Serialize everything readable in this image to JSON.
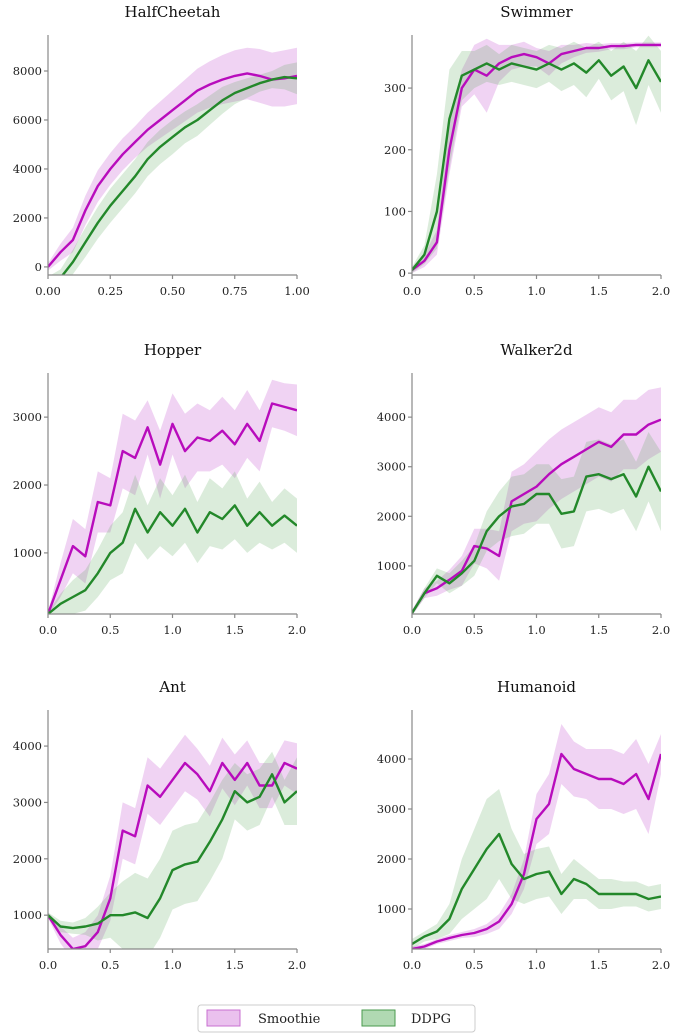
{
  "chart_data": [
    {
      "type": "line",
      "title": "HalfCheetah",
      "xlim": [
        0,
        1
      ],
      "ylim": [
        -330,
        9470
      ],
      "xticks": [
        "0.00",
        "0.25",
        "0.50",
        "0.75",
        "1.00"
      ],
      "yticks": [
        "0",
        "2000",
        "4000",
        "6000",
        "8000"
      ],
      "x": [
        0,
        0.05,
        0.1,
        0.15,
        0.2,
        0.25,
        0.3,
        0.35,
        0.4,
        0.45,
        0.5,
        0.55,
        0.6,
        0.65,
        0.7,
        0.75,
        0.8,
        0.85,
        0.9,
        0.95,
        1.0
      ],
      "series": [
        {
          "name": "Smoothie",
          "mean": [
            0,
            600,
            1100,
            2300,
            3300,
            4000,
            4600,
            5100,
            5600,
            6000,
            6400,
            6800,
            7200,
            7450,
            7650,
            7800,
            7900,
            7800,
            7650,
            7700,
            7800
          ],
          "band": [
            150,
            350,
            500,
            600,
            650,
            650,
            650,
            650,
            700,
            750,
            800,
            850,
            900,
            950,
            1000,
            1050,
            1050,
            1100,
            1100,
            1150,
            1150
          ]
        },
        {
          "name": "DDPG",
          "mean": [
            -600,
            -450,
            200,
            1000,
            1800,
            2500,
            3100,
            3700,
            4400,
            4900,
            5300,
            5700,
            6000,
            6400,
            6800,
            7100,
            7300,
            7500,
            7650,
            7750,
            7700
          ],
          "band": [
            200,
            350,
            500,
            600,
            650,
            700,
            700,
            700,
            700,
            700,
            700,
            650,
            650,
            600,
            550,
            450,
            400,
            350,
            350,
            500,
            650
          ]
        }
      ]
    },
    {
      "type": "line",
      "title": "Swimmer",
      "xlim": [
        0,
        2
      ],
      "ylim": [
        -3,
        386
      ],
      "xticks": [
        "0.0",
        "0.5",
        "1.0",
        "1.5",
        "2.0"
      ],
      "yticks": [
        "0",
        "100",
        "200",
        "300"
      ],
      "x": [
        0,
        0.1,
        0.2,
        0.3,
        0.4,
        0.5,
        0.6,
        0.7,
        0.8,
        0.9,
        1.0,
        1.1,
        1.2,
        1.3,
        1.4,
        1.5,
        1.6,
        1.7,
        1.8,
        1.9,
        2.0
      ],
      "series": [
        {
          "name": "Smoothie",
          "mean": [
            5,
            20,
            50,
            200,
            300,
            330,
            320,
            340,
            350,
            355,
            350,
            340,
            355,
            360,
            365,
            365,
            368,
            368,
            370,
            370,
            370
          ],
          "band": [
            5,
            10,
            20,
            40,
            30,
            40,
            60,
            30,
            20,
            20,
            15,
            20,
            15,
            10,
            8,
            6,
            5,
            5,
            4,
            4,
            4
          ]
        },
        {
          "name": "DDPG",
          "mean": [
            5,
            30,
            100,
            250,
            320,
            330,
            340,
            330,
            340,
            335,
            330,
            340,
            330,
            340,
            325,
            345,
            320,
            335,
            300,
            345,
            310
          ],
          "band": [
            5,
            15,
            60,
            80,
            40,
            30,
            30,
            25,
            30,
            30,
            30,
            30,
            35,
            35,
            40,
            30,
            40,
            40,
            60,
            40,
            50
          ]
        }
      ]
    },
    {
      "type": "line",
      "title": "Hopper",
      "xlim": [
        0,
        2
      ],
      "ylim": [
        100,
        3650
      ],
      "xticks": [
        "0.0",
        "0.5",
        "1.0",
        "1.5",
        "2.0"
      ],
      "yticks": [
        "1000",
        "2000",
        "3000"
      ],
      "x": [
        0,
        0.1,
        0.2,
        0.3,
        0.4,
        0.5,
        0.6,
        0.7,
        0.8,
        0.9,
        1.0,
        1.1,
        1.2,
        1.3,
        1.4,
        1.5,
        1.6,
        1.7,
        1.8,
        1.9,
        2.0
      ],
      "series": [
        {
          "name": "Smoothie",
          "mean": [
            100,
            600,
            1100,
            950,
            1750,
            1700,
            2500,
            2400,
            2850,
            2300,
            2900,
            2500,
            2700,
            2650,
            2800,
            2600,
            2900,
            2650,
            3200,
            3150,
            3100
          ],
          "band": [
            30,
            250,
            400,
            400,
            450,
            400,
            550,
            550,
            400,
            500,
            450,
            550,
            500,
            450,
            500,
            500,
            500,
            450,
            350,
            350,
            380
          ]
        },
        {
          "name": "DDPG",
          "mean": [
            100,
            250,
            350,
            450,
            700,
            1000,
            1150,
            1650,
            1300,
            1600,
            1400,
            1650,
            1300,
            1600,
            1500,
            1700,
            1400,
            1600,
            1400,
            1550,
            1400
          ],
          "band": [
            30,
            150,
            250,
            300,
            350,
            400,
            450,
            500,
            400,
            500,
            450,
            500,
            450,
            500,
            450,
            500,
            400,
            450,
            350,
            400,
            400
          ]
        }
      ]
    },
    {
      "type": "line",
      "title": "Walker2d",
      "xlim": [
        0,
        2
      ],
      "ylim": [
        30,
        4890
      ],
      "xticks": [
        "0.0",
        "0.5",
        "1.0",
        "1.5",
        "2.0"
      ],
      "yticks": [
        "1000",
        "2000",
        "3000",
        "4000"
      ],
      "x": [
        0,
        0.1,
        0.2,
        0.3,
        0.4,
        0.5,
        0.6,
        0.7,
        0.8,
        0.9,
        1.0,
        1.1,
        1.2,
        1.3,
        1.4,
        1.5,
        1.6,
        1.7,
        1.8,
        1.9,
        2.0
      ],
      "series": [
        {
          "name": "Smoothie",
          "mean": [
            50,
            450,
            550,
            720,
            900,
            1400,
            1350,
            1200,
            2300,
            2450,
            2600,
            2850,
            3050,
            3200,
            3350,
            3500,
            3400,
            3650,
            3650,
            3850,
            3950
          ],
          "band": [
            50,
            100,
            150,
            200,
            300,
            350,
            400,
            500,
            600,
            600,
            700,
            700,
            700,
            700,
            700,
            700,
            700,
            700,
            700,
            700,
            650
          ]
        },
        {
          "name": "DDPG",
          "mean": [
            50,
            450,
            800,
            650,
            850,
            1100,
            1700,
            2000,
            2200,
            2250,
            2450,
            2450,
            2050,
            2100,
            2800,
            2850,
            2750,
            2850,
            2400,
            3000,
            2500
          ],
          "band": [
            50,
            100,
            150,
            200,
            250,
            300,
            400,
            500,
            600,
            600,
            600,
            600,
            700,
            700,
            700,
            700,
            700,
            700,
            700,
            700,
            800
          ]
        }
      ]
    },
    {
      "type": "line",
      "title": "Ant",
      "xlim": [
        0,
        2
      ],
      "ylim": [
        400,
        4640
      ],
      "xticks": [
        "0.0",
        "0.5",
        "1.0",
        "1.5",
        "2.0"
      ],
      "yticks": [
        "1000",
        "2000",
        "3000",
        "4000"
      ],
      "x": [
        0,
        0.1,
        0.2,
        0.3,
        0.4,
        0.5,
        0.6,
        0.7,
        0.8,
        0.9,
        1.0,
        1.1,
        1.2,
        1.3,
        1.4,
        1.5,
        1.6,
        1.7,
        1.8,
        1.9,
        2.0
      ],
      "series": [
        {
          "name": "Smoothie",
          "mean": [
            1000,
            650,
            400,
            450,
            700,
            1300,
            2500,
            2400,
            3300,
            3100,
            3400,
            3700,
            3500,
            3200,
            3700,
            3400,
            3700,
            3300,
            3300,
            3700,
            3600
          ],
          "band": [
            50,
            150,
            200,
            250,
            300,
            400,
            500,
            500,
            500,
            500,
            500,
            500,
            450,
            450,
            450,
            450,
            400,
            400,
            400,
            400,
            450
          ]
        },
        {
          "name": "DDPG",
          "mean": [
            1000,
            800,
            770,
            800,
            850,
            1000,
            1000,
            1050,
            950,
            1300,
            1800,
            1900,
            1950,
            2300,
            2700,
            3200,
            3000,
            3100,
            3500,
            3000,
            3200
          ],
          "band": [
            50,
            100,
            100,
            150,
            300,
            400,
            600,
            700,
            700,
            700,
            700,
            700,
            700,
            700,
            700,
            500,
            500,
            500,
            400,
            400,
            600
          ]
        }
      ]
    },
    {
      "type": "line",
      "title": "Humanoid",
      "xlim": [
        0,
        2
      ],
      "ylim": [
        200,
        4980
      ],
      "xticks": [
        "0.0",
        "0.5",
        "1.0",
        "1.5",
        "2.0"
      ],
      "yticks": [
        "1000",
        "2000",
        "3000",
        "4000"
      ],
      "x": [
        0,
        0.1,
        0.2,
        0.3,
        0.4,
        0.5,
        0.6,
        0.7,
        0.8,
        0.9,
        1.0,
        1.1,
        1.2,
        1.3,
        1.4,
        1.5,
        1.6,
        1.7,
        1.8,
        1.9,
        2.0
      ],
      "series": [
        {
          "name": "Smoothie",
          "mean": [
            200,
            250,
            350,
            420,
            480,
            520,
            600,
            750,
            1100,
            1700,
            2800,
            3100,
            4100,
            3800,
            3700,
            3600,
            3600,
            3500,
            3700,
            3200,
            4100
          ],
          "band": [
            50,
            50,
            50,
            60,
            60,
            80,
            100,
            150,
            200,
            300,
            500,
            600,
            600,
            550,
            500,
            600,
            600,
            600,
            700,
            700,
            400
          ]
        },
        {
          "name": "DDPG",
          "mean": [
            300,
            450,
            550,
            800,
            1400,
            1800,
            2200,
            2500,
            1900,
            1600,
            1700,
            1750,
            1300,
            1600,
            1500,
            1300,
            1300,
            1300,
            1300,
            1200,
            1250
          ],
          "band": [
            100,
            100,
            150,
            300,
            600,
            800,
            1000,
            900,
            700,
            500,
            500,
            500,
            400,
            400,
            300,
            300,
            300,
            250,
            250,
            250,
            250
          ]
        }
      ]
    }
  ],
  "legend": {
    "placement": "bottom-center",
    "entries": [
      {
        "label": "Smoothie",
        "line_color": "#b80cbc",
        "fill_color": "#d88ee0"
      },
      {
        "label": "DDPG",
        "line_color": "#23882a",
        "fill_color": "#7cc07e"
      }
    ]
  }
}
